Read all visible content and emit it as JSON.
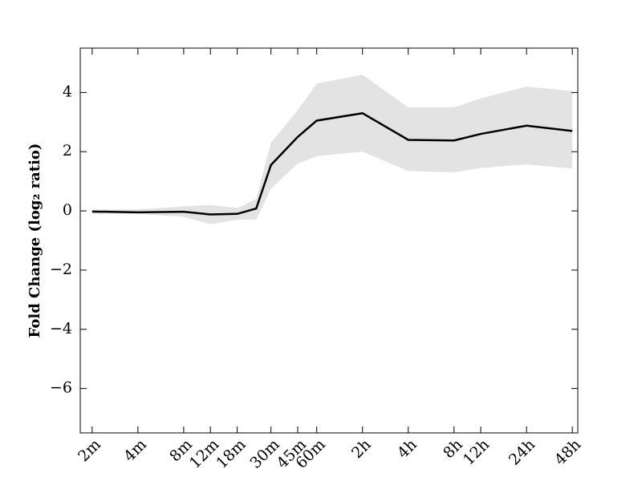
{
  "chart_data": {
    "type": "line",
    "ylabel": "Fold Change (log₂ ratio)",
    "x": [
      2,
      4,
      8,
      12,
      18,
      24,
      30,
      45,
      60,
      120,
      240,
      480,
      720,
      1440,
      2880
    ],
    "values": [
      -0.02,
      -0.05,
      -0.03,
      -0.12,
      -0.1,
      0.08,
      1.55,
      2.5,
      3.05,
      3.3,
      2.4,
      2.38,
      2.6,
      2.88,
      2.7
    ],
    "upper": [
      0.05,
      0.05,
      0.15,
      0.2,
      0.1,
      0.4,
      2.3,
      3.4,
      4.3,
      4.6,
      3.5,
      3.5,
      3.8,
      4.2,
      4.05
    ],
    "lower": [
      -0.1,
      -0.1,
      -0.2,
      -0.45,
      -0.3,
      -0.3,
      0.75,
      1.6,
      1.85,
      2.0,
      1.35,
      1.3,
      1.45,
      1.57,
      1.43
    ],
    "color": "#000000",
    "band_color": "#e3e3e3",
    "xscale": "log2",
    "xlim": [
      1.67,
      3130
    ],
    "xticks": [
      {
        "value": 2,
        "label": "2m"
      },
      {
        "value": 4,
        "label": "4m"
      },
      {
        "value": 8,
        "label": "8m"
      },
      {
        "value": 12,
        "label": "12m"
      },
      {
        "value": 18,
        "label": "18m"
      },
      {
        "value": 30,
        "label": "30m"
      },
      {
        "value": 45,
        "label": "45m"
      },
      {
        "value": 60,
        "label": "60m"
      },
      {
        "value": 120,
        "label": "2h"
      },
      {
        "value": 240,
        "label": "4h"
      },
      {
        "value": 480,
        "label": "8h"
      },
      {
        "value": 720,
        "label": "12h"
      },
      {
        "value": 1440,
        "label": "24h"
      },
      {
        "value": 2880,
        "label": "48h"
      }
    ],
    "ylim": [
      -7.5,
      5.5
    ],
    "yticks": [
      {
        "value": -6,
        "label": "−6"
      },
      {
        "value": -4,
        "label": "−4"
      },
      {
        "value": -2,
        "label": "−2"
      },
      0,
      2,
      4
    ]
  }
}
